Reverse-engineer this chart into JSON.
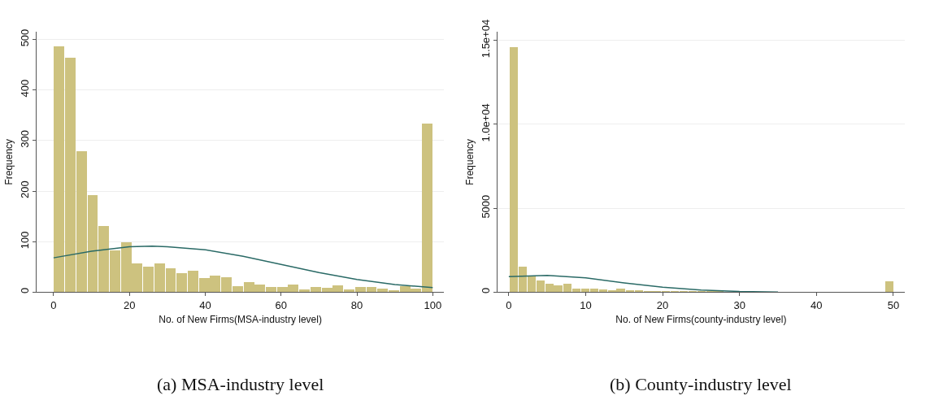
{
  "chart_data": [
    {
      "type": "histogram",
      "xlabel": "No. of New Firms(MSA-industry level)",
      "ylabel": "Frequency",
      "bins": [
        0,
        2.94,
        5.88,
        8.82,
        11.76,
        14.71,
        17.65,
        20.59,
        23.53,
        26.47,
        29.41,
        32.35,
        35.29,
        38.24,
        41.18,
        44.12,
        47.06,
        50,
        52.94,
        55.88,
        58.82,
        61.76,
        64.71,
        67.65,
        70.59,
        73.53,
        76.47,
        79.41,
        82.35,
        85.29,
        88.24,
        91.18,
        94.12,
        97.06,
        100
      ],
      "values": [
        486,
        464,
        278,
        192,
        131,
        82,
        99,
        56,
        51,
        56,
        47,
        37,
        43,
        27,
        32,
        30,
        11,
        19,
        15,
        10,
        10,
        15,
        6,
        10,
        9,
        13,
        5,
        10,
        10,
        7,
        4,
        12,
        7,
        334
      ],
      "color": "#cdc27f",
      "series": [
        {
          "type": "line",
          "color": "#2a6a66",
          "x": [
            0,
            10,
            20,
            26,
            30,
            40,
            50,
            60,
            70,
            80,
            90,
            100
          ],
          "values": [
            68,
            81,
            90,
            91,
            90,
            84,
            71,
            55,
            39,
            25,
            15,
            9
          ]
        }
      ],
      "xlim": [
        -4.5,
        103
      ],
      "ylim": [
        0,
        515
      ],
      "xticks": [
        0,
        20,
        40,
        60,
        80,
        100
      ],
      "yticks": [
        0,
        100,
        200,
        300,
        400,
        500
      ],
      "grid": "y",
      "annotations": [
        "(a) MSA-industry level"
      ]
    },
    {
      "type": "histogram",
      "xlabel": "No. of New Firms(county-industry level)",
      "ylabel": "Frequency",
      "bins": [
        0,
        1.16,
        2.33,
        3.49,
        4.65,
        5.81,
        6.98,
        8.14,
        9.3,
        10.47,
        11.63,
        12.79,
        13.95,
        15.12,
        16.28,
        17.44,
        18.6,
        19.77,
        20.93,
        22.09,
        23.26,
        24.42,
        25.58,
        26.74,
        27.91,
        29.07,
        30.23,
        31.4,
        32.56,
        33.72,
        34.88,
        36.05,
        37.21,
        38.37,
        39.53,
        40.7,
        41.86,
        43.02,
        44.19,
        45.35,
        46.51,
        47.67,
        48.84,
        50
      ],
      "values": [
        14600,
        1500,
        960,
        680,
        490,
        400,
        520,
        190,
        190,
        190,
        160,
        100,
        190,
        100,
        100,
        80,
        70,
        60,
        50,
        40,
        30,
        30,
        20,
        20,
        10,
        10,
        0,
        0,
        0,
        0,
        0,
        0,
        0,
        0,
        0,
        0,
        0,
        0,
        0,
        0,
        0,
        0,
        640
      ],
      "color": "#cdc27f",
      "series": [
        {
          "type": "line",
          "color": "#2a6a66",
          "x": [
            0,
            5,
            10,
            15,
            20,
            25,
            30,
            35
          ],
          "values": [
            930,
            1000,
            850,
            550,
            300,
            130,
            40,
            10
          ]
        }
      ],
      "xlim": [
        -1.5,
        51.5
      ],
      "ylim": [
        0,
        15500
      ],
      "xticks": [
        0,
        10,
        20,
        30,
        40,
        50
      ],
      "yticks": [
        0,
        5000,
        {
          "value": 10000,
          "label": "1.0e+04"
        },
        {
          "value": 15000,
          "label": "1.5e+04"
        }
      ],
      "grid": "y",
      "annotations": [
        "(b) County-industry level"
      ]
    }
  ]
}
